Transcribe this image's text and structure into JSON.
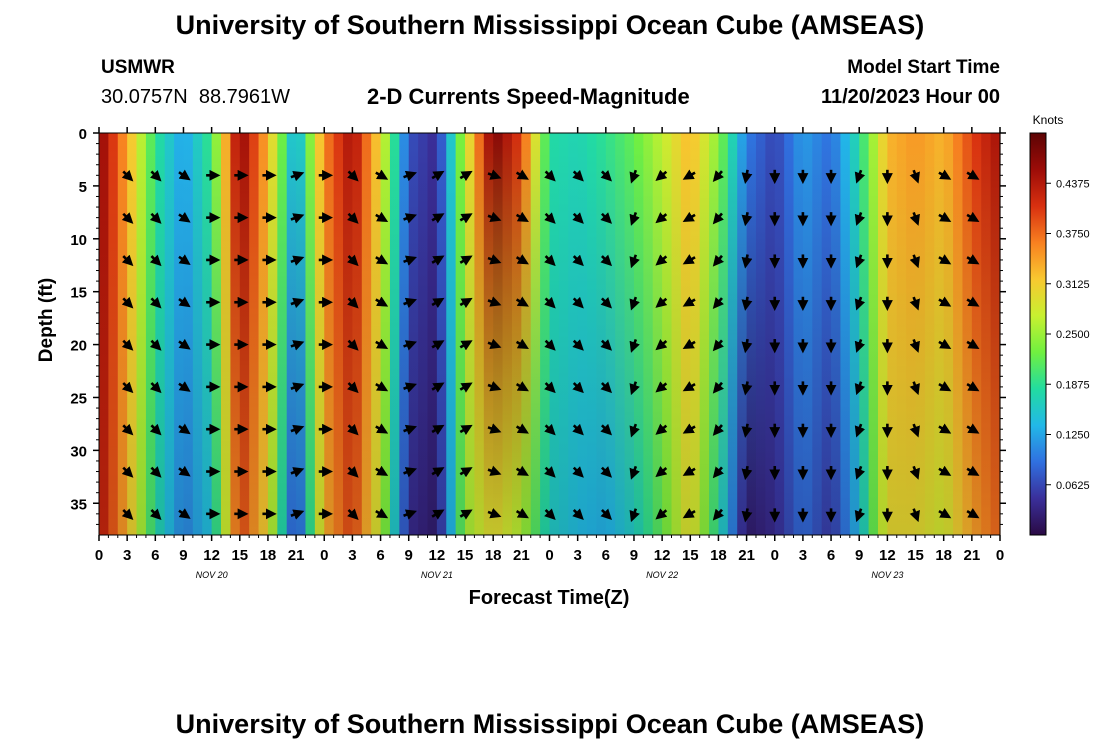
{
  "header": {
    "title": "University of Southern Mississippi Ocean Cube (AMSEAS)",
    "station_id": "USMWR",
    "station_coords": "30.0757N  88.7961W",
    "plot_title": "2-D Currents Speed-Magnitude",
    "model_start_label": "Model Start Time",
    "model_start_value": "11/20/2023 Hour 00"
  },
  "footer": {
    "title": "University of Southern Mississippi Ocean Cube (AMSEAS)"
  },
  "chart_data": {
    "type": "heatmap",
    "title": "2-D Currents Speed-Magnitude",
    "xlabel": "Forecast Time(Z)",
    "ylabel": "Depth (ft)",
    "x_ticks": [
      "0",
      "3",
      "6",
      "9",
      "12",
      "15",
      "18",
      "21",
      "0",
      "3",
      "6",
      "9",
      "12",
      "15",
      "18",
      "21",
      "0",
      "3",
      "6",
      "9",
      "12",
      "15",
      "18",
      "21",
      "0",
      "3",
      "6",
      "9",
      "12",
      "15",
      "18",
      "21",
      "0"
    ],
    "date_labels": [
      "NOV 20",
      "NOV 21",
      "NOV 22",
      "NOV 23"
    ],
    "y_ticks": [
      0,
      5,
      10,
      15,
      20,
      25,
      30,
      35
    ],
    "ylim": [
      0,
      38
    ],
    "xlim_hours": [
      0,
      96
    ],
    "colorbar": {
      "unit_label": "Knots",
      "ticks": [
        "0.4375",
        "0.3750",
        "0.3125",
        "0.2500",
        "0.1875",
        "0.1250",
        "0.0625"
      ],
      "range": [
        0,
        0.5
      ],
      "colors": [
        "#2a0a44",
        "#3a2f9a",
        "#3070e0",
        "#22b8e8",
        "#22dca0",
        "#70f040",
        "#c8f030",
        "#f8c830",
        "#f88020",
        "#d83010",
        "#9c0c08",
        "#5c0404"
      ]
    },
    "time_hours": [
      0,
      3,
      6,
      9,
      12,
      15,
      18,
      21,
      24,
      27,
      30,
      33,
      36,
      39,
      42,
      45,
      48,
      51,
      54,
      57,
      60,
      63,
      66,
      69,
      72,
      75,
      78,
      81,
      84,
      87,
      90,
      93,
      96
    ],
    "speed_knots_surface": [
      0.47,
      0.34,
      0.19,
      0.12,
      0.2,
      0.47,
      0.33,
      0.12,
      0.36,
      0.45,
      0.3,
      0.07,
      0.04,
      0.27,
      0.48,
      0.4,
      0.18,
      0.17,
      0.19,
      0.22,
      0.27,
      0.33,
      0.24,
      0.1,
      0.06,
      0.12,
      0.09,
      0.18,
      0.33,
      0.35,
      0.33,
      0.4,
      0.45
    ],
    "speed_knots_bottom": [
      0.44,
      0.33,
      0.18,
      0.1,
      0.15,
      0.4,
      0.3,
      0.05,
      0.33,
      0.4,
      0.27,
      0.04,
      0.02,
      0.25,
      0.3,
      0.26,
      0.16,
      0.14,
      0.13,
      0.16,
      0.22,
      0.3,
      0.18,
      0.02,
      0.04,
      0.09,
      0.05,
      0.14,
      0.3,
      0.3,
      0.28,
      0.34,
      0.38
    ],
    "vector_depths_ft": [
      4,
      8,
      12,
      16,
      20,
      24,
      28,
      32,
      36
    ],
    "direction_deg_to": [
      135,
      135,
      135,
      125,
      90,
      90,
      90,
      70,
      90,
      135,
      120,
      70,
      60,
      60,
      110,
      120,
      135,
      135,
      135,
      200,
      230,
      240,
      220,
      190,
      180,
      180,
      180,
      200,
      180,
      160,
      120,
      120,
      110
    ]
  }
}
